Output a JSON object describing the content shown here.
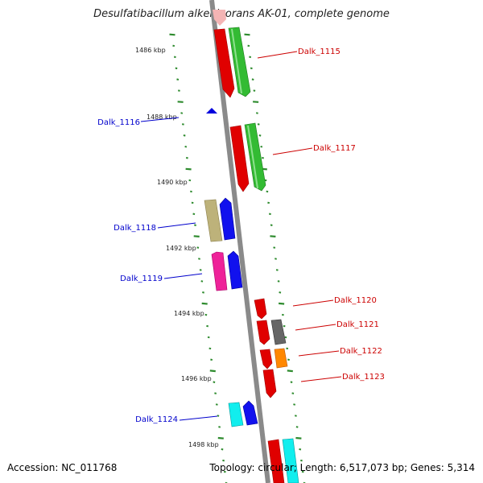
{
  "title": "Desulfatibacillum alkenivorans AK-01, complete genome",
  "footer": {
    "accession": "Accession: NC_011768",
    "stats": "Topology: circular; Length: 6,517,073 bp; Genes: 5,314"
  },
  "colors": {
    "backbone": "#8a8a8a",
    "tick": "#2e8b2e",
    "forward_label": "#cc0000",
    "reverse_label": "#0000cc"
  },
  "ruler": {
    "unit": "kbp",
    "ticks": [
      {
        "kbp": 1486,
        "label": "1486 kbp"
      },
      {
        "kbp": 1488,
        "label": "1488 kbp"
      },
      {
        "kbp": 1490,
        "label": "1490 kbp"
      },
      {
        "kbp": 1492,
        "label": "1492 kbp"
      },
      {
        "kbp": 1494,
        "label": "1494 kbp"
      },
      {
        "kbp": 1496,
        "label": "1496 kbp"
      },
      {
        "kbp": 1498,
        "label": "1498 kbp"
      }
    ]
  },
  "labeled_genes": [
    {
      "name": "Dalk_1115",
      "strand": "forward"
    },
    {
      "name": "Dalk_1116",
      "strand": "reverse"
    },
    {
      "name": "Dalk_1117",
      "strand": "forward"
    },
    {
      "name": "Dalk_1118",
      "strand": "reverse"
    },
    {
      "name": "Dalk_1119",
      "strand": "reverse"
    },
    {
      "name": "Dalk_1120",
      "strand": "forward"
    },
    {
      "name": "Dalk_1121",
      "strand": "forward"
    },
    {
      "name": "Dalk_1122",
      "strand": "forward"
    },
    {
      "name": "Dalk_1123",
      "strand": "forward"
    },
    {
      "name": "Dalk_1124",
      "strand": "reverse"
    }
  ]
}
